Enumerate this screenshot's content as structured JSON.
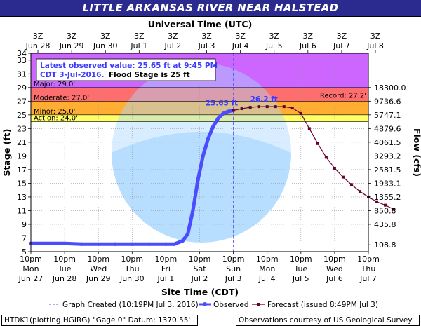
{
  "title": "LITTLE ARKANSAS RIVER NEAR HALSTEAD",
  "footer": {
    "left": "HTDK1(plotting HGIRG) \"Gage 0\" Datum: 1370.55'",
    "right": "Observations courtesy of US Geological Survey"
  },
  "colors": {
    "major": "#cc66ff",
    "moderate": "#ff6e6e",
    "minor": "#ffad33",
    "action": "#ffff66",
    "observed": "#4c4cff",
    "forecast": "#660033",
    "title_bar": "#2b2b8f"
  },
  "chart_data": {
    "type": "line",
    "xlabel": "Site Time (CDT)",
    "ylabel": "Stage (ft)",
    "y2label": "Flow (cfs)",
    "top_axis_label": "Universal Time (UTC)",
    "x_range": [
      "Jun 27 10pm",
      "Jul 7 10pm"
    ],
    "ylim": [
      5,
      34
    ],
    "y_ticks": [
      5,
      7,
      9,
      11,
      13,
      15,
      17,
      19,
      21,
      23,
      25,
      27,
      29,
      31,
      33,
      34
    ],
    "grid": true,
    "bottom_ticks": [
      {
        "time": "10pm",
        "day": "Mon",
        "date": "Jun 27"
      },
      {
        "time": "10pm",
        "day": "Tue",
        "date": "Jun 28"
      },
      {
        "time": "10pm",
        "day": "Wed",
        "date": "Jun 29"
      },
      {
        "time": "10pm",
        "day": "Thu",
        "date": "Jun 30"
      },
      {
        "time": "10pm",
        "day": "Fri",
        "date": "Jul 1"
      },
      {
        "time": "10pm",
        "day": "Sat",
        "date": "Jul 2"
      },
      {
        "time": "10pm",
        "day": "Sun",
        "date": "Jul 3"
      },
      {
        "time": "10pm",
        "day": "Mon",
        "date": "Jul 4"
      },
      {
        "time": "10pm",
        "day": "Tue",
        "date": "Jul 5"
      },
      {
        "time": "10pm",
        "day": "Wed",
        "date": "Jul 6"
      },
      {
        "time": "10pm",
        "day": "Thu",
        "date": "Jul 7"
      }
    ],
    "top_ticks": [
      {
        "time": "3Z",
        "date": "Jun 28"
      },
      {
        "time": "3Z",
        "date": "Jun 29"
      },
      {
        "time": "3Z",
        "date": "Jun 30"
      },
      {
        "time": "3Z",
        "date": "Jul 1"
      },
      {
        "time": "3Z",
        "date": "Jul 2"
      },
      {
        "time": "3Z",
        "date": "Jul 3"
      },
      {
        "time": "3Z",
        "date": "Jul 4"
      },
      {
        "time": "3Z",
        "date": "Jul 5"
      },
      {
        "time": "3Z",
        "date": "Jul 6"
      },
      {
        "time": "3Z",
        "date": "Jul 7"
      },
      {
        "time": "3Z",
        "date": "Jul 8"
      }
    ],
    "flow_ticks": [
      {
        "stage": 6,
        "flow": "108.8"
      },
      {
        "stage": 9,
        "flow": "435.8"
      },
      {
        "stage": 11,
        "flow": "850.8"
      },
      {
        "stage": 13,
        "flow": "1355.2"
      },
      {
        "stage": 15,
        "flow": "1933.1"
      },
      {
        "stage": 17,
        "flow": "2581.5"
      },
      {
        "stage": 19,
        "flow": "3293.2"
      },
      {
        "stage": 21,
        "flow": "4061.5"
      },
      {
        "stage": 23,
        "flow": "4879.6"
      },
      {
        "stage": 25,
        "flow": "5747.1"
      },
      {
        "stage": 27,
        "flow": "9736.6"
      },
      {
        "stage": 29,
        "flow": "18300.0"
      }
    ],
    "flood_categories": [
      {
        "name": "Major",
        "label": "Major: 29.0'",
        "from": 29,
        "to": 34
      },
      {
        "name": "Moderate",
        "label": "Moderate: 27.0'",
        "from": 27,
        "to": 29
      },
      {
        "name": "Minor",
        "label": "Minor: 25.0'",
        "from": 25,
        "to": 27
      },
      {
        "name": "Action",
        "label": "Action: 24.0'",
        "from": 24,
        "to": 25
      }
    ],
    "record": {
      "label": "Record: 27.2'",
      "value": 27.2
    },
    "latest_observed_box": {
      "line1": "Latest observed value: 25.65 ft at 9:45 PM",
      "line2": "CDT 3-Jul-2016.",
      "line2b": "Flood Stage is 25 ft"
    },
    "annotations": {
      "observed_peak": "25.65 ft",
      "forecast_peak": "26.2 ft"
    },
    "graph_created_day": 6.0,
    "series": [
      {
        "name": "Observed",
        "points": [
          [
            0.0,
            6.2
          ],
          [
            0.5,
            6.2
          ],
          [
            1.0,
            6.2
          ],
          [
            1.5,
            6.1
          ],
          [
            2.0,
            6.1
          ],
          [
            2.5,
            6.1
          ],
          [
            3.0,
            6.1
          ],
          [
            3.5,
            6.1
          ],
          [
            4.0,
            6.1
          ],
          [
            4.25,
            6.1
          ],
          [
            4.5,
            6.6
          ],
          [
            4.65,
            7.6
          ],
          [
            4.8,
            11.0
          ],
          [
            4.95,
            15.5
          ],
          [
            5.1,
            19.0
          ],
          [
            5.25,
            21.5
          ],
          [
            5.4,
            23.3
          ],
          [
            5.55,
            24.5
          ],
          [
            5.7,
            25.2
          ],
          [
            5.85,
            25.5
          ],
          [
            6.0,
            25.65
          ]
        ]
      },
      {
        "name": "Forecast",
        "points": [
          [
            6.0,
            25.65
          ],
          [
            6.25,
            25.9
          ],
          [
            6.5,
            26.1
          ],
          [
            6.75,
            26.2
          ],
          [
            7.0,
            26.2
          ],
          [
            7.25,
            26.2
          ],
          [
            7.5,
            26.2
          ],
          [
            7.75,
            26.0
          ],
          [
            8.0,
            25.2
          ],
          [
            8.25,
            23.0
          ],
          [
            8.5,
            20.8
          ],
          [
            8.75,
            18.8
          ],
          [
            9.0,
            17.2
          ],
          [
            9.25,
            15.9
          ],
          [
            9.5,
            14.8
          ],
          [
            9.75,
            13.8
          ],
          [
            10.0,
            13.0
          ],
          [
            10.25,
            12.3
          ],
          [
            10.5,
            11.8
          ],
          [
            10.75,
            11.2
          ]
        ]
      }
    ],
    "legend": {
      "graph_created": "Graph Created (10:19PM Jul 3, 2016)",
      "observed": "Observed",
      "forecast": "Forecast (issued 8:49PM Jul 3)"
    }
  }
}
